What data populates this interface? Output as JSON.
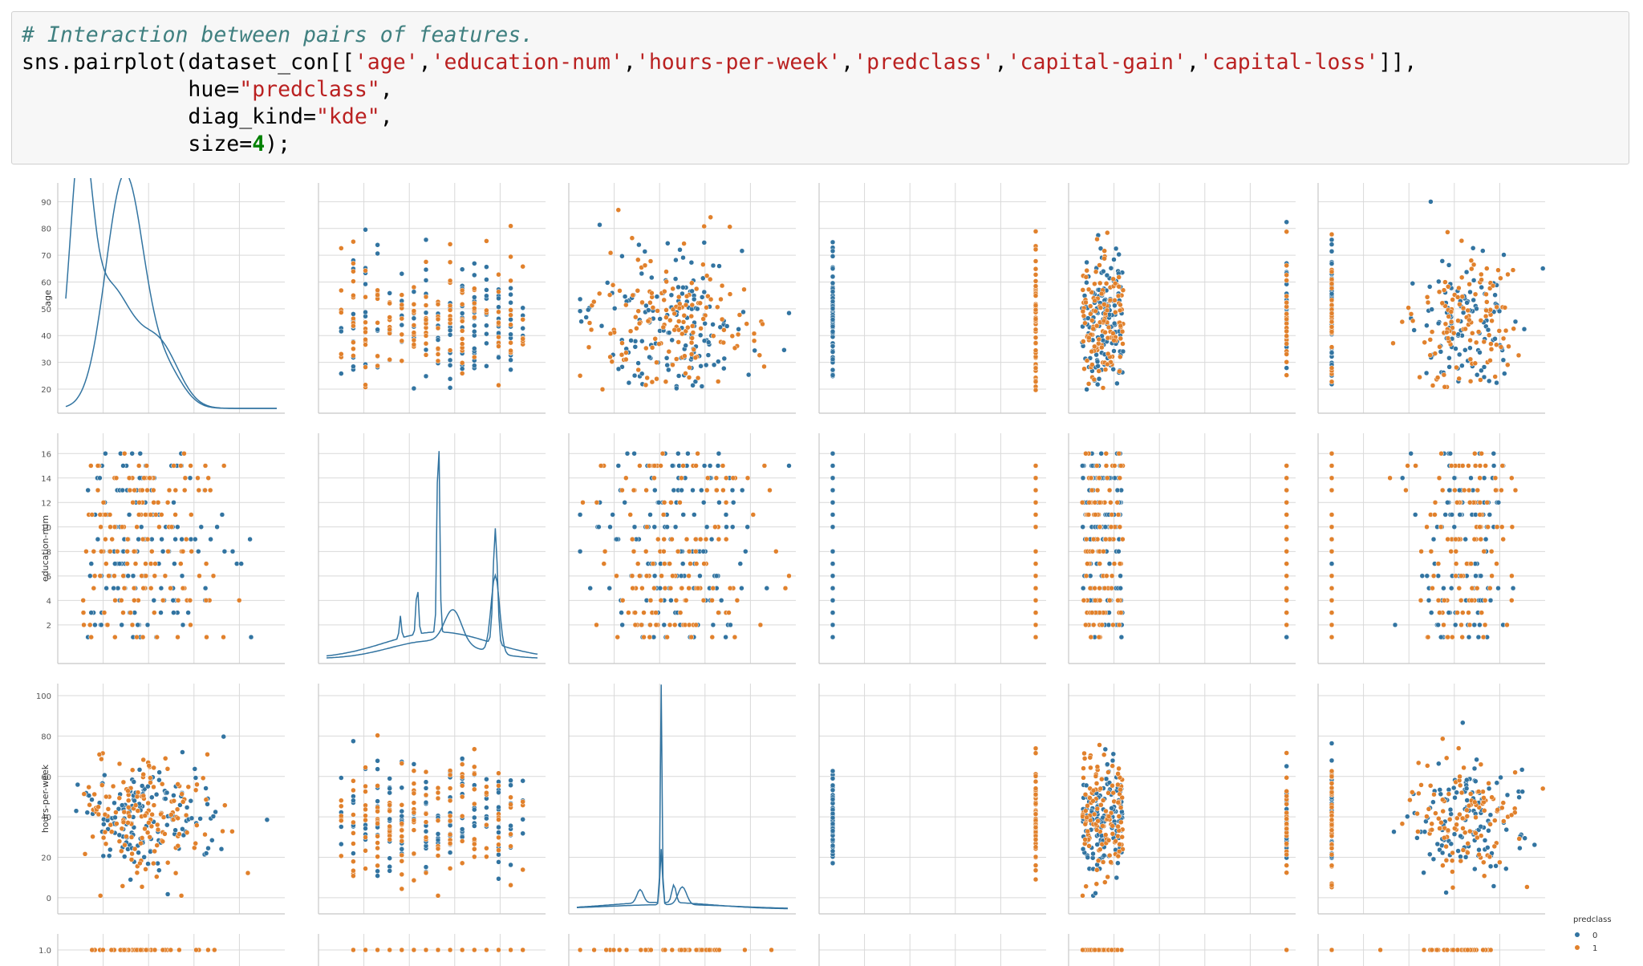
{
  "notebook": {
    "code_lines": [
      {
        "segments": [
          {
            "t": "# Interaction between pairs of features.",
            "k": "comment"
          }
        ]
      },
      {
        "segments": [
          {
            "t": "sns.pairplot(dataset_con[[",
            "k": ""
          },
          {
            "t": "'age'",
            "k": "str"
          },
          {
            "t": ",",
            "k": ""
          },
          {
            "t": "'education-num'",
            "k": "str"
          },
          {
            "t": ",",
            "k": ""
          },
          {
            "t": "'hours-per-week'",
            "k": "str"
          },
          {
            "t": ",",
            "k": ""
          },
          {
            "t": "'predclass'",
            "k": "str"
          },
          {
            "t": ",",
            "k": ""
          },
          {
            "t": "'capital-gain'",
            "k": "str"
          },
          {
            "t": ",",
            "k": ""
          },
          {
            "t": "'capital-loss'",
            "k": "str"
          },
          {
            "t": "]],",
            "k": ""
          }
        ]
      },
      {
        "segments": [
          {
            "t": "             hue=",
            "k": ""
          },
          {
            "t": "\"predclass\"",
            "k": "str"
          },
          {
            "t": ",",
            "k": ""
          }
        ]
      },
      {
        "segments": [
          {
            "t": "             diag_kind=",
            "k": ""
          },
          {
            "t": "\"kde\"",
            "k": "str"
          },
          {
            "t": ",",
            "k": ""
          }
        ]
      },
      {
        "segments": [
          {
            "t": "             size=",
            "k": ""
          },
          {
            "t": "4",
            "k": "num"
          },
          {
            "t": ");",
            "k": ""
          }
        ]
      }
    ]
  },
  "colors": {
    "class_0": "#3274a1",
    "class_1": "#e1812c",
    "grid": "#d9d9d9",
    "axis_text": "#555555"
  },
  "chart_data": {
    "type": "scatter",
    "kind": "pairplot",
    "hue": "predclass",
    "diag_kind": "kde",
    "variables_shown": [
      "age",
      "education-num",
      "hours-per-week",
      "predclass"
    ],
    "ylabels": [
      "age",
      "education-num",
      "hours-per-week",
      ""
    ],
    "yticks": [
      {
        "var": "age",
        "ticks": [
          20,
          30,
          40,
          50,
          60,
          70,
          80,
          90
        ],
        "range": [
          14,
          94
        ]
      },
      {
        "var": "education-num",
        "ticks": [
          2,
          4,
          6,
          8,
          10,
          12,
          14,
          16
        ],
        "range": [
          -0.5,
          17
        ]
      },
      {
        "var": "hours-per-week",
        "ticks": [
          0,
          20,
          40,
          60,
          80,
          100
        ],
        "range": [
          -4,
          102
        ]
      },
      {
        "var": "predclass",
        "ticks": [
          1.0
        ],
        "range": [
          0.9,
          1.1
        ]
      }
    ],
    "legend": {
      "title": "predclass",
      "entries": [
        "0",
        "1"
      ],
      "placement": "right"
    },
    "series": [
      {
        "name": "0"
      },
      {
        "name": "1"
      }
    ],
    "grid": true
  }
}
